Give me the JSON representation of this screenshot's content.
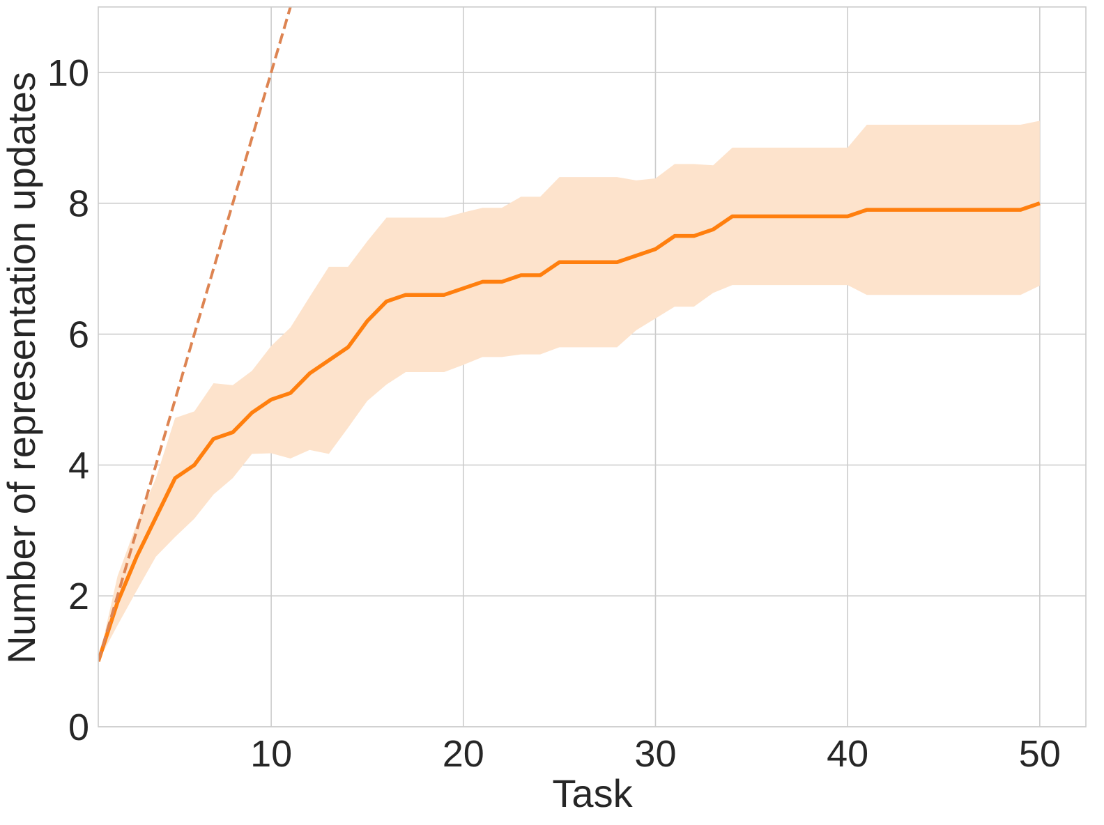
{
  "chart_data": {
    "type": "line",
    "title": "",
    "xlabel": "Task",
    "ylabel": "Number of representation updates",
    "xlim": [
      1,
      52.4
    ],
    "ylim": [
      0,
      11
    ],
    "xticks": [
      10,
      20,
      30,
      40,
      50
    ],
    "yticks": [
      0,
      2,
      4,
      6,
      8,
      10
    ],
    "grid": true,
    "legend": "none",
    "series": [
      {
        "style": "solid",
        "color": "#ff7f0e",
        "x": [
          1,
          2,
          3,
          4,
          5,
          6,
          7,
          8,
          9,
          10,
          11,
          12,
          13,
          14,
          15,
          16,
          17,
          18,
          19,
          20,
          21,
          22,
          23,
          24,
          25,
          26,
          27,
          28,
          29,
          30,
          31,
          32,
          33,
          34,
          35,
          36,
          37,
          38,
          39,
          40,
          41,
          42,
          43,
          44,
          45,
          46,
          47,
          48,
          49,
          50
        ],
        "y": [
          1.0,
          1.9,
          2.6,
          3.2,
          3.8,
          4.0,
          4.4,
          4.5,
          4.8,
          5.0,
          5.1,
          5.4,
          5.6,
          5.8,
          6.2,
          6.5,
          6.6,
          6.6,
          6.6,
          6.7,
          6.8,
          6.8,
          6.9,
          6.9,
          7.1,
          7.1,
          7.1,
          7.1,
          7.2,
          7.3,
          7.5,
          7.5,
          7.6,
          7.8,
          7.8,
          7.8,
          7.8,
          7.8,
          7.8,
          7.8,
          7.9,
          7.9,
          7.9,
          7.9,
          7.9,
          7.9,
          7.9,
          7.9,
          7.9,
          8.0
        ],
        "band_upper": [
          1.0,
          2.3,
          3.1,
          3.8,
          4.72,
          4.82,
          5.25,
          5.22,
          5.44,
          5.82,
          6.1,
          6.57,
          7.03,
          7.03,
          7.42,
          7.78,
          7.78,
          7.78,
          7.78,
          7.86,
          7.93,
          7.93,
          8.1,
          8.1,
          8.4,
          8.4,
          8.4,
          8.4,
          8.35,
          8.38,
          8.6,
          8.6,
          8.58,
          8.85,
          8.85,
          8.85,
          8.85,
          8.85,
          8.85,
          8.85,
          9.2,
          9.2,
          9.2,
          9.2,
          9.2,
          9.2,
          9.2,
          9.2,
          9.2,
          9.26
        ],
        "band_lower": [
          1.0,
          1.55,
          2.08,
          2.6,
          2.9,
          3.18,
          3.55,
          3.8,
          4.17,
          4.18,
          4.1,
          4.23,
          4.17,
          4.57,
          4.98,
          5.23,
          5.42,
          5.42,
          5.42,
          5.53,
          5.65,
          5.65,
          5.69,
          5.69,
          5.8,
          5.8,
          5.8,
          5.8,
          6.06,
          6.24,
          6.42,
          6.42,
          6.63,
          6.75,
          6.75,
          6.75,
          6.75,
          6.75,
          6.75,
          6.75,
          6.6,
          6.6,
          6.6,
          6.6,
          6.6,
          6.6,
          6.6,
          6.6,
          6.6,
          6.74
        ],
        "band_color": "#fde3cc"
      },
      {
        "style": "dashed",
        "color": "#dd8452",
        "x": [
          1,
          11
        ],
        "y": [
          1,
          11
        ]
      }
    ]
  }
}
